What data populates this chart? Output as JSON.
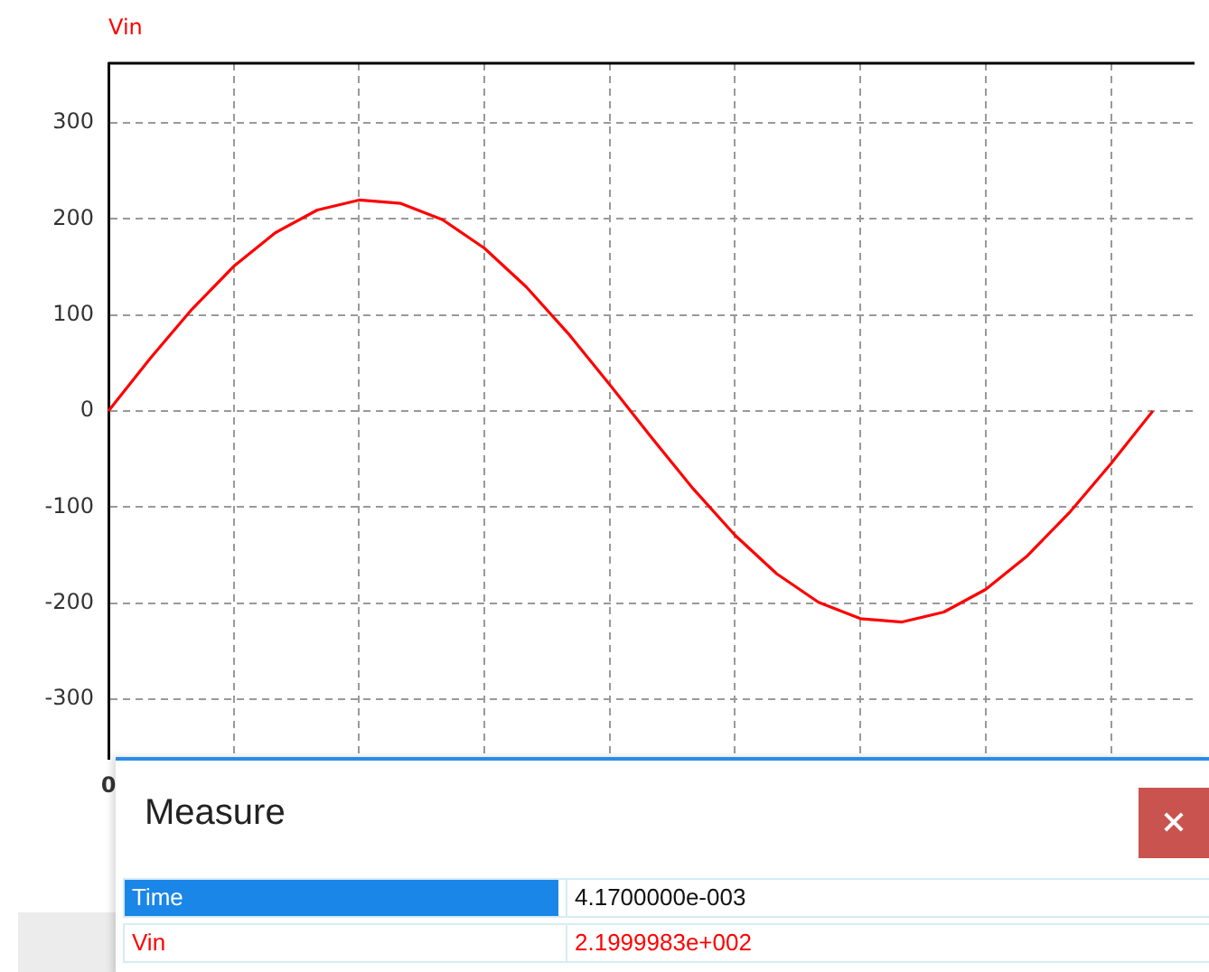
{
  "chart_data": {
    "type": "line",
    "categories": [
      "0",
      null,
      null,
      null,
      null,
      null,
      null,
      null,
      null,
      null,
      null,
      null,
      null,
      null,
      null,
      null,
      null,
      null,
      null,
      null,
      null,
      null,
      null,
      null,
      null,
      null,
      null
    ],
    "series": [
      {
        "name": "Vin",
        "color": "#ff0000",
        "values": [
          0,
          54.7,
          106,
          150.6,
          185.7,
          209.2,
          219.6,
          216.1,
          199.1,
          169.5,
          129.3,
          81,
          27.6,
          -27.6,
          -81,
          -129.3,
          -169.5,
          -199.1,
          -216.1,
          -219.6,
          -209.2,
          -185.7,
          -150.6,
          -106,
          -54.7,
          0,
          null
        ]
      }
    ],
    "ylim": [
      -362,
      362
    ],
    "yticks": [
      -300,
      -200,
      -100,
      0,
      100,
      200,
      300
    ],
    "grid": true,
    "marker": "none",
    "line_style": "solid",
    "annotations": [
      "Measure",
      "Time",
      "4.1700000e-003",
      "2.1999983e+002"
    ]
  }
}
